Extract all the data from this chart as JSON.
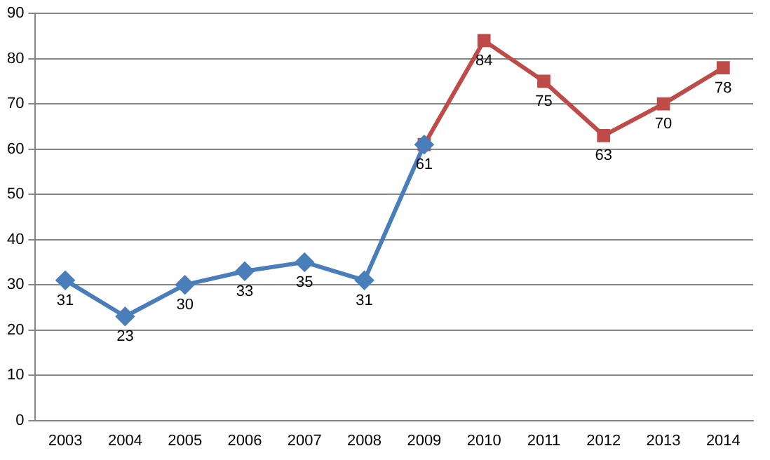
{
  "chart_data": {
    "type": "line",
    "categories": [
      "2003",
      "2004",
      "2005",
      "2006",
      "2007",
      "2008",
      "2009",
      "2010",
      "2011",
      "2012",
      "2013",
      "2014"
    ],
    "series": [
      {
        "color": "#4a7ebb",
        "marker": "diamond",
        "values": [
          31,
          23,
          30,
          33,
          35,
          31,
          61,
          null,
          null,
          null,
          null,
          null
        ],
        "value_labels": [
          "31",
          "23",
          "30",
          "33",
          "35",
          "31",
          null,
          null,
          null,
          null,
          null,
          null
        ]
      },
      {
        "color": "#be4b48",
        "marker": "square",
        "values": [
          null,
          null,
          null,
          null,
          null,
          null,
          61,
          84,
          75,
          63,
          70,
          78
        ],
        "value_labels": [
          null,
          null,
          null,
          null,
          null,
          null,
          "61",
          "84",
          "75",
          "63",
          "70",
          "78"
        ]
      }
    ],
    "ylim": [
      0,
      90
    ],
    "yticks": [
      0,
      10,
      20,
      30,
      40,
      50,
      60,
      70,
      80,
      90
    ],
    "grid": "y",
    "legend": false
  }
}
